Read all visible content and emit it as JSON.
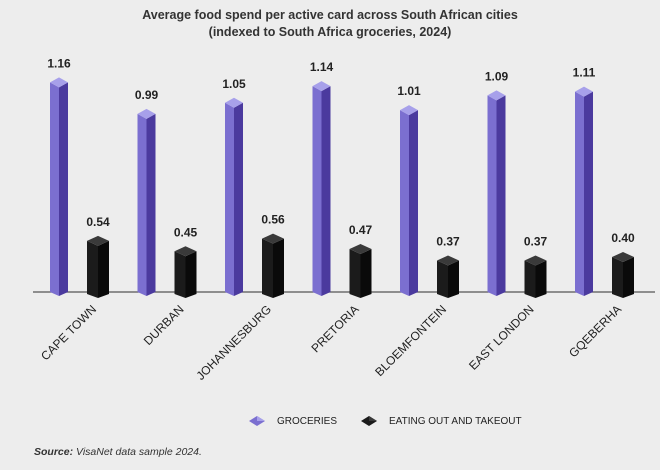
{
  "title_line1": "Average food spend per active card across South African cities",
  "title_line2": "(indexed to South Africa groceries, 2024)",
  "source_label": "Source:",
  "source_text": "VisaNet data sample 2024.",
  "colors": {
    "groceries_front": "#7b6fd0",
    "groceries_side": "#4b3a9e",
    "groceries_top": "#a7a0ea",
    "eating_front": "#1b1b1b",
    "eating_side": "#0a0a0a",
    "eating_top": "#3a3a3a",
    "axis": "#555555"
  },
  "chart_data": {
    "type": "bar",
    "categories": [
      "CAPE TOWN",
      "DURBAN",
      "JOHANNESBURG",
      "PRETORIA",
      "BLOEMFONTEIN",
      "EAST LONDON",
      "GQEBERHA"
    ],
    "series": [
      {
        "name": "GROCERIES",
        "values": [
          1.16,
          0.99,
          1.05,
          1.14,
          1.01,
          1.09,
          1.11
        ],
        "labels": [
          "1.16",
          "0.99",
          "1.05",
          "1.14",
          "1.01",
          "1.09",
          "1.11"
        ]
      },
      {
        "name": "EATING OUT AND TAKEOUT",
        "values": [
          0.54,
          0.45,
          0.56,
          0.47,
          0.37,
          0.37,
          0.4
        ],
        "labels": [
          "0.54",
          "0.45",
          "0.56",
          "0.47",
          "0.37",
          "0.37",
          "0.40"
        ]
      }
    ],
    "ylim": [
      0,
      1.16
    ],
    "legend": "bottom",
    "grid": false
  }
}
